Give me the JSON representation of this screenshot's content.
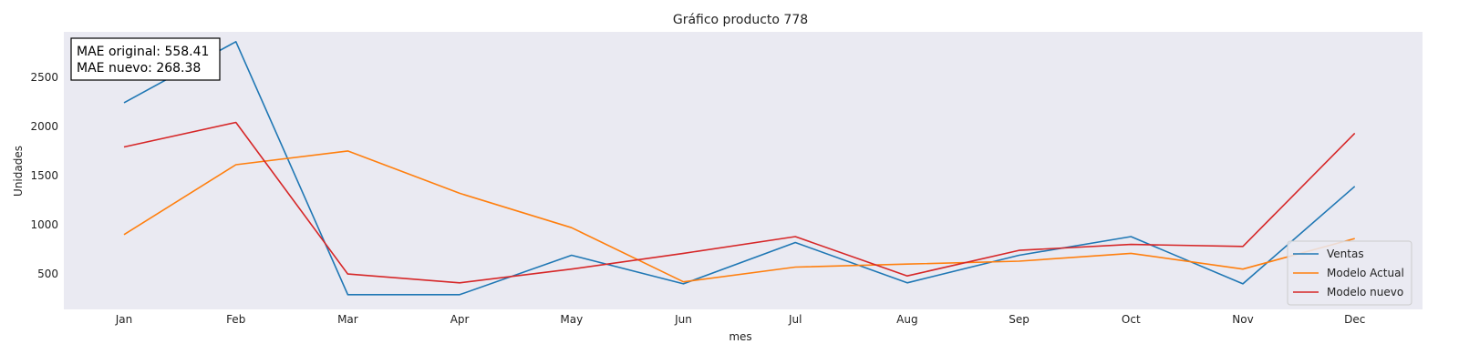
{
  "chart_data": {
    "type": "line",
    "title": "Gráfico producto 778",
    "xlabel": "mes",
    "ylabel": "Unidades",
    "categories": [
      "Jan",
      "Feb",
      "Mar",
      "Apr",
      "May",
      "Jun",
      "Jul",
      "Aug",
      "Sep",
      "Oct",
      "Nov",
      "Dec"
    ],
    "yticks": [
      500,
      1000,
      1500,
      2000,
      2500
    ],
    "ylim": [
      140,
      2960
    ],
    "grid": false,
    "legend_position": "lower-right",
    "series": [
      {
        "name": "Ventas",
        "color": "#1f77b4",
        "values": [
          2240,
          2860,
          290,
          290,
          690,
          400,
          820,
          410,
          690,
          880,
          400,
          1390
        ]
      },
      {
        "name": "Modelo Actual",
        "color": "#ff7f0e",
        "values": [
          900,
          1610,
          1750,
          1320,
          970,
          420,
          570,
          600,
          630,
          710,
          550,
          860
        ]
      },
      {
        "name": "Modelo nuevo",
        "color": "#d62728",
        "values": [
          1790,
          2040,
          500,
          410,
          550,
          710,
          880,
          480,
          740,
          800,
          780,
          1930
        ]
      }
    ],
    "annotation": {
      "line1": "MAE original: 558.41",
      "line2": "MAE nuevo: 268.38",
      "position": "top-left"
    }
  }
}
